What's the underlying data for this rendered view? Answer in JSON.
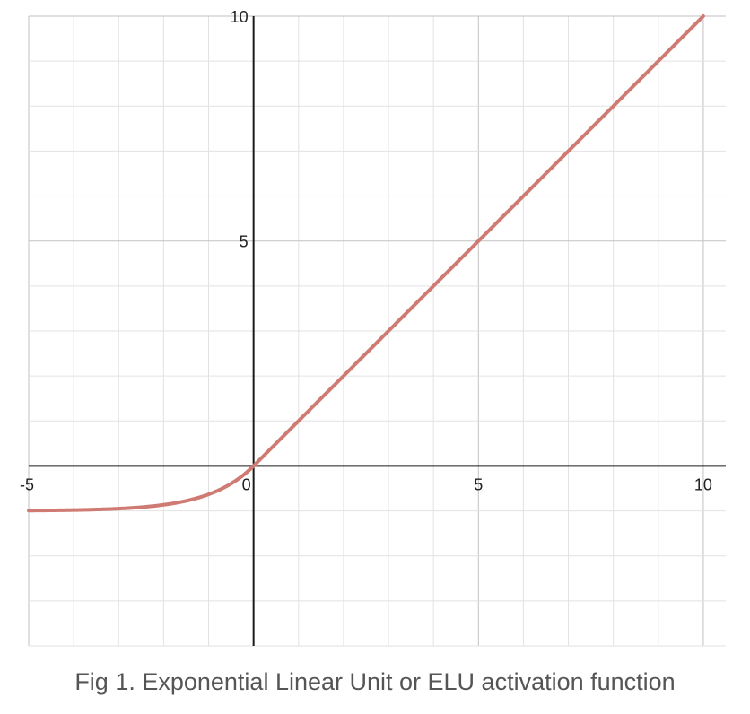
{
  "caption": "Fig 1. Exponential Linear Unit or ELU activation function",
  "colors": {
    "curve": "#cf7a72",
    "grid_minor": "#e2e2e2",
    "grid_major": "#c2c2c2",
    "axis": "#1a1a1a",
    "tick_text": "#222222",
    "caption": "#555555"
  },
  "chart_data": {
    "type": "line",
    "title": "",
    "xlabel": "",
    "ylabel": "",
    "xlim": [
      -5,
      10.5
    ],
    "ylim": [
      -4,
      10
    ],
    "grid": true,
    "x_ticks": [
      {
        "value": -5,
        "label": "-5"
      },
      {
        "value": 0,
        "label": "0"
      },
      {
        "value": 5,
        "label": "5"
      },
      {
        "value": 10,
        "label": "10"
      }
    ],
    "y_ticks": [
      {
        "value": 5,
        "label": "5"
      },
      {
        "value": 10,
        "label": "10"
      }
    ],
    "series": [
      {
        "function": "elu",
        "alpha": 1,
        "x": [
          -5,
          -4,
          -3,
          -2,
          -1.5,
          -1,
          -0.75,
          -0.5,
          -0.25,
          0,
          2,
          4,
          5,
          6,
          8,
          10
        ],
        "y": [
          -0.993,
          -0.982,
          -0.95,
          -0.865,
          -0.777,
          -0.632,
          -0.528,
          -0.393,
          -0.221,
          0,
          2,
          4,
          5,
          6,
          8,
          10
        ]
      }
    ]
  }
}
